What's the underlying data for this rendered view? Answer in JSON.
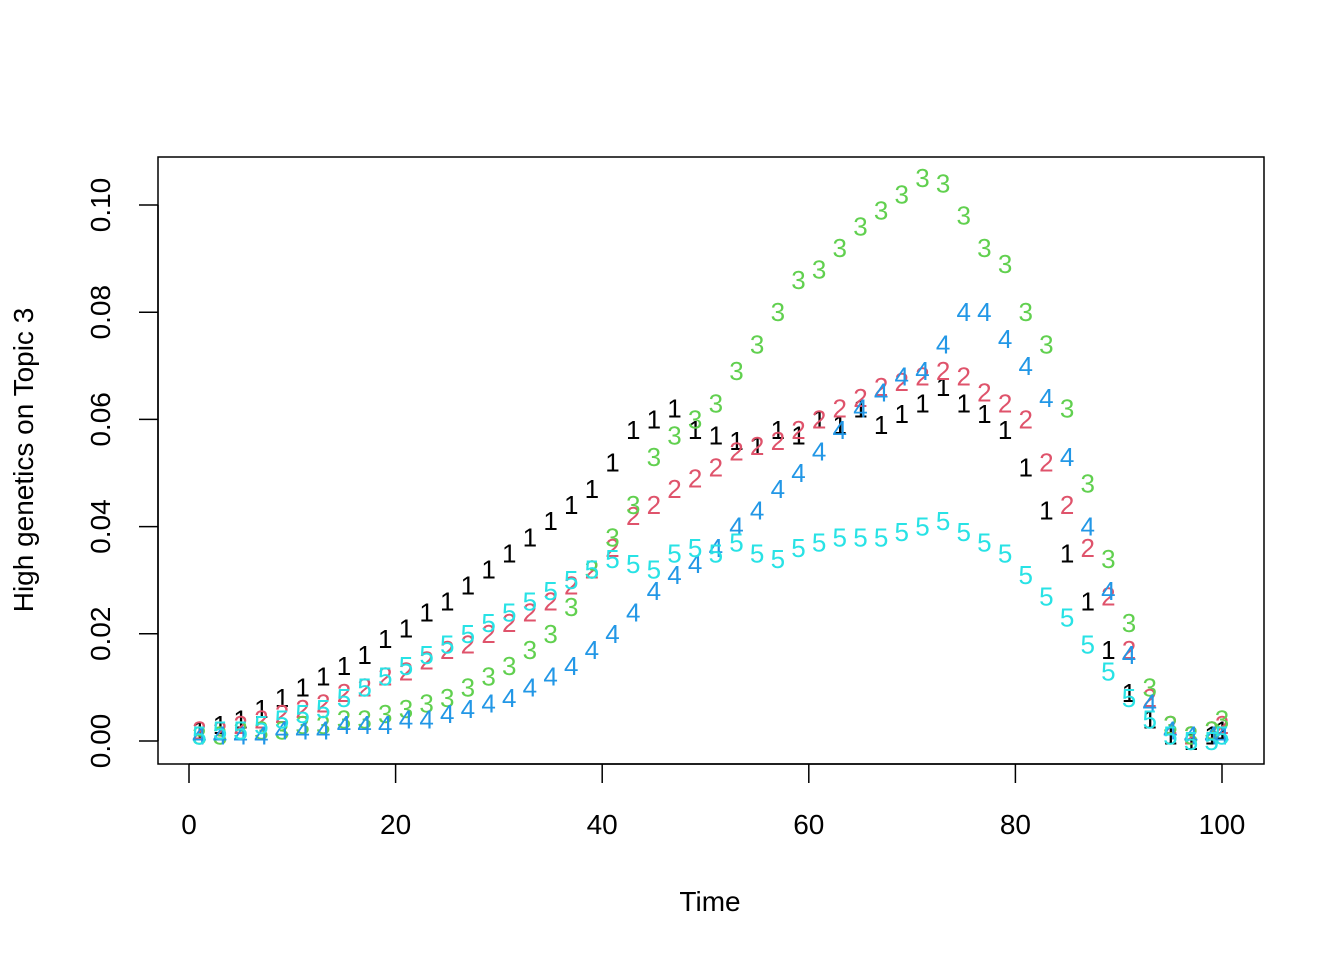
{
  "chart_data": {
    "type": "line",
    "title": "",
    "xlabel": "Time",
    "ylabel": "High genetics on Topic 3",
    "xlim": [
      0,
      100
    ],
    "ylim": [
      0,
      0.1
    ],
    "x_ticks": [
      0,
      20,
      40,
      60,
      80,
      100
    ],
    "x_tick_labels": [
      "0",
      "20",
      "40",
      "60",
      "80",
      "100"
    ],
    "y_ticks": [
      0,
      0.02,
      0.04,
      0.06,
      0.08,
      0.1
    ],
    "y_tick_labels": [
      "0.00",
      "0.02",
      "0.04",
      "0.06",
      "0.08",
      "0.10"
    ],
    "grid": false,
    "legend": "none",
    "point_style": "series number used as plotting character",
    "series": [
      {
        "name": "1",
        "color": "#000000",
        "x": [
          1,
          3,
          5,
          7,
          9,
          11,
          13,
          15,
          17,
          19,
          21,
          23,
          25,
          27,
          29,
          31,
          33,
          35,
          37,
          39,
          41,
          43,
          45,
          47,
          49,
          51,
          53,
          55,
          57,
          59,
          61,
          63,
          65,
          67,
          69,
          71,
          73,
          75,
          77,
          79,
          81,
          83,
          85,
          87,
          89,
          91,
          93,
          95,
          97,
          99,
          100
        ],
        "values": [
          0.002,
          0.003,
          0.004,
          0.006,
          0.008,
          0.01,
          0.012,
          0.014,
          0.016,
          0.019,
          0.021,
          0.024,
          0.026,
          0.029,
          0.032,
          0.035,
          0.038,
          0.041,
          0.044,
          0.047,
          0.052,
          0.058,
          0.06,
          0.062,
          0.058,
          0.057,
          0.056,
          0.055,
          0.058,
          0.057,
          0.06,
          0.059,
          0.062,
          0.059,
          0.061,
          0.063,
          0.066,
          0.063,
          0.061,
          0.058,
          0.051,
          0.043,
          0.035,
          0.026,
          0.017,
          0.009,
          0.004,
          0.001,
          0.0,
          0.001,
          0.002
        ]
      },
      {
        "name": "2",
        "color": "#DF536B",
        "x": [
          1,
          3,
          5,
          7,
          9,
          11,
          13,
          15,
          17,
          19,
          21,
          23,
          25,
          27,
          29,
          31,
          33,
          35,
          37,
          39,
          41,
          43,
          45,
          47,
          49,
          51,
          53,
          55,
          57,
          59,
          61,
          63,
          65,
          67,
          69,
          71,
          73,
          75,
          77,
          79,
          81,
          83,
          85,
          87,
          89,
          91,
          93,
          95,
          97,
          99,
          100
        ],
        "values": [
          0.002,
          0.002,
          0.003,
          0.004,
          0.005,
          0.006,
          0.007,
          0.009,
          0.01,
          0.012,
          0.013,
          0.015,
          0.017,
          0.018,
          0.02,
          0.022,
          0.024,
          0.026,
          0.029,
          0.032,
          0.036,
          0.042,
          0.044,
          0.047,
          0.049,
          0.051,
          0.054,
          0.055,
          0.056,
          0.058,
          0.06,
          0.062,
          0.064,
          0.066,
          0.067,
          0.068,
          0.069,
          0.068,
          0.065,
          0.063,
          0.06,
          0.052,
          0.044,
          0.036,
          0.027,
          0.017,
          0.008,
          0.003,
          0.001,
          0.002,
          0.003
        ]
      },
      {
        "name": "3",
        "color": "#61D04F",
        "x": [
          1,
          3,
          5,
          7,
          9,
          11,
          13,
          15,
          17,
          19,
          21,
          23,
          25,
          27,
          29,
          31,
          33,
          35,
          37,
          39,
          41,
          43,
          45,
          47,
          49,
          51,
          53,
          55,
          57,
          59,
          61,
          63,
          65,
          67,
          69,
          71,
          73,
          75,
          77,
          79,
          81,
          83,
          85,
          87,
          89,
          91,
          93,
          95,
          97,
          99,
          100
        ],
        "values": [
          0.001,
          0.001,
          0.002,
          0.002,
          0.002,
          0.003,
          0.003,
          0.004,
          0.004,
          0.005,
          0.006,
          0.007,
          0.008,
          0.01,
          0.012,
          0.014,
          0.017,
          0.02,
          0.025,
          0.032,
          0.038,
          0.044,
          0.053,
          0.057,
          0.06,
          0.063,
          0.069,
          0.074,
          0.08,
          0.086,
          0.088,
          0.092,
          0.096,
          0.099,
          0.102,
          0.105,
          0.104,
          0.098,
          0.092,
          0.089,
          0.08,
          0.074,
          0.062,
          0.048,
          0.034,
          0.022,
          0.01,
          0.003,
          0.001,
          0.002,
          0.004
        ]
      },
      {
        "name": "4",
        "color": "#2297E6",
        "x": [
          1,
          3,
          5,
          7,
          9,
          11,
          13,
          15,
          17,
          19,
          21,
          23,
          25,
          27,
          29,
          31,
          33,
          35,
          37,
          39,
          41,
          43,
          45,
          47,
          49,
          51,
          53,
          55,
          57,
          59,
          61,
          63,
          65,
          67,
          69,
          71,
          73,
          75,
          77,
          79,
          81,
          83,
          85,
          87,
          89,
          91,
          93,
          95,
          97,
          99,
          100
        ],
        "values": [
          0.001,
          0.001,
          0.001,
          0.001,
          0.002,
          0.002,
          0.002,
          0.003,
          0.003,
          0.003,
          0.004,
          0.004,
          0.005,
          0.006,
          0.007,
          0.008,
          0.01,
          0.012,
          0.014,
          0.017,
          0.02,
          0.024,
          0.028,
          0.031,
          0.033,
          0.036,
          0.04,
          0.043,
          0.047,
          0.05,
          0.054,
          0.058,
          0.062,
          0.065,
          0.068,
          0.069,
          0.074,
          0.08,
          0.08,
          0.075,
          0.07,
          0.064,
          0.053,
          0.04,
          0.028,
          0.016,
          0.007,
          0.002,
          0.001,
          0.001,
          0.001
        ]
      },
      {
        "name": "5",
        "color": "#28E2E5",
        "x": [
          1,
          3,
          5,
          7,
          9,
          11,
          13,
          15,
          17,
          19,
          21,
          23,
          25,
          27,
          29,
          31,
          33,
          35,
          37,
          39,
          41,
          43,
          45,
          47,
          49,
          51,
          53,
          55,
          57,
          59,
          61,
          63,
          65,
          67,
          69,
          71,
          73,
          75,
          77,
          79,
          81,
          83,
          85,
          87,
          89,
          91,
          93,
          95,
          97,
          99,
          100
        ],
        "values": [
          0.001,
          0.002,
          0.002,
          0.003,
          0.004,
          0.005,
          0.006,
          0.008,
          0.01,
          0.012,
          0.014,
          0.016,
          0.018,
          0.02,
          0.022,
          0.024,
          0.026,
          0.028,
          0.03,
          0.032,
          0.034,
          0.033,
          0.032,
          0.035,
          0.036,
          0.035,
          0.037,
          0.035,
          0.034,
          0.036,
          0.037,
          0.038,
          0.038,
          0.038,
          0.039,
          0.04,
          0.041,
          0.039,
          0.037,
          0.035,
          0.031,
          0.027,
          0.023,
          0.018,
          0.013,
          0.008,
          0.004,
          0.001,
          0.0,
          0.0,
          0.001
        ]
      }
    ]
  }
}
